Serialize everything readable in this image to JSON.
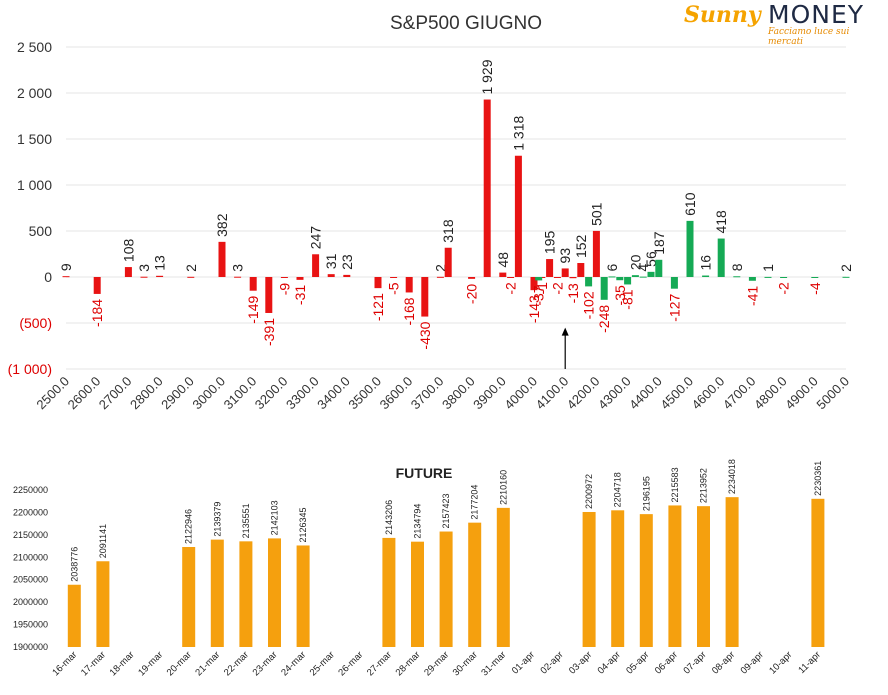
{
  "logo": {
    "brand_first": "Sunny",
    "brand_second": "MONEY",
    "tagline": "Facciamo luce sui mercati"
  },
  "colors": {
    "call": "#e81313",
    "put": "#15aa55",
    "future": "#f5a00e",
    "axis_text": "#333333",
    "negative_tick": "#dd0000",
    "grid": "#e6e6e6"
  },
  "chart_data": [
    {
      "type": "bar",
      "title": "S&P500 GIUGNO",
      "ylim": [
        -1000,
        2500
      ],
      "yticks": [
        "2 500",
        "2 000",
        "1 500",
        "1 000",
        "500",
        "0",
        "(500)",
        "(1 000)"
      ],
      "ytick_values": [
        2500,
        2000,
        1500,
        1000,
        500,
        0,
        -500,
        -1000
      ],
      "grid": true,
      "categories": [
        "2500.0",
        "2600.0",
        "2700.0",
        "2800.0",
        "2900.0",
        "3000.0",
        "3100.0",
        "3200.0",
        "3300.0",
        "3400.0",
        "3500.0",
        "3600.0",
        "3700.0",
        "3800.0",
        "3900.0",
        "4000.0",
        "4100.0",
        "4200.0",
        "4300.0",
        "4400.0",
        "4500.0",
        "4600.0",
        "4700.0",
        "4800.0",
        "4900.0",
        "5000.0"
      ],
      "series": [
        {
          "color": "call",
          "points": [
            {
              "x": 2500,
              "y": 9
            },
            {
              "x": 2600,
              "y": -184
            },
            {
              "x": 2700,
              "y": 108
            },
            {
              "x": 2750,
              "y": 3
            },
            {
              "x": 2800,
              "y": 13
            },
            {
              "x": 2900,
              "y": 2
            },
            {
              "x": 3000,
              "y": 382
            },
            {
              "x": 3050,
              "y": 3
            },
            {
              "x": 3100,
              "y": -149
            },
            {
              "x": 3150,
              "y": -391
            },
            {
              "x": 3200,
              "y": -9
            },
            {
              "x": 3250,
              "y": -31
            },
            {
              "x": 3300,
              "y": 247
            },
            {
              "x": 3350,
              "y": 31
            },
            {
              "x": 3400,
              "y": 23
            },
            {
              "x": 3500,
              "y": -121
            },
            {
              "x": 3550,
              "y": -5
            },
            {
              "x": 3600,
              "y": -168
            },
            {
              "x": 3650,
              "y": -430
            },
            {
              "x": 3700,
              "y": 2
            },
            {
              "x": 3725,
              "y": 318
            },
            {
              "x": 3800,
              "y": -20
            },
            {
              "x": 3850,
              "y": 1929
            },
            {
              "x": 3900,
              "y": 48
            },
            {
              "x": 3925,
              "y": -2
            },
            {
              "x": 3950,
              "y": 1318
            },
            {
              "x": 4000,
              "y": -143
            },
            {
              "x": 4025,
              "y": -1
            },
            {
              "x": 4050,
              "y": 195
            },
            {
              "x": 4075,
              "y": -2
            },
            {
              "x": 4100,
              "y": 93
            },
            {
              "x": 4125,
              "y": -13
            },
            {
              "x": 4150,
              "y": 152
            },
            {
              "x": 4200,
              "y": 501
            }
          ]
        },
        {
          "color": "put",
          "points": [
            {
              "x": 4015,
              "y": -37
            },
            {
              "x": 4175,
              "y": -102
            },
            {
              "x": 4225,
              "y": -248
            },
            {
              "x": 4250,
              "y": 6
            },
            {
              "x": 4275,
              "y": -35
            },
            {
              "x": 4300,
              "y": -81
            },
            {
              "x": 4325,
              "y": 20
            },
            {
              "x": 4350,
              "y": 4
            },
            {
              "x": 4375,
              "y": 56
            },
            {
              "x": 4400,
              "y": 187
            },
            {
              "x": 4450,
              "y": -127
            },
            {
              "x": 4500,
              "y": 610
            },
            {
              "x": 4550,
              "y": 16
            },
            {
              "x": 4600,
              "y": 418
            },
            {
              "x": 4650,
              "y": 8
            },
            {
              "x": 4700,
              "y": -41
            },
            {
              "x": 4750,
              "y": 1
            },
            {
              "x": 4800,
              "y": -2
            },
            {
              "x": 4900,
              "y": -4
            },
            {
              "x": 5000,
              "y": 2
            }
          ]
        }
      ],
      "annotations": [
        {
          "type": "arrow",
          "x": 4100,
          "from_y": -1000,
          "to_y": -550
        }
      ]
    },
    {
      "type": "bar",
      "title": "FUTURE",
      "ylim": [
        1900000,
        2250000
      ],
      "yticks": [
        "2250000",
        "2200000",
        "2150000",
        "2100000",
        "2050000",
        "2000000",
        "1950000",
        "1900000"
      ],
      "ytick_values": [
        2250000,
        2200000,
        2150000,
        2100000,
        2050000,
        2000000,
        1950000,
        1900000
      ],
      "grid": false,
      "categories": [
        "16-mar",
        "17-mar",
        "18-mar",
        "19-mar",
        "20-mar",
        "21-mar",
        "22-mar",
        "23-mar",
        "24-mar",
        "25-mar",
        "26-mar",
        "27-mar",
        "28-mar",
        "29-mar",
        "30-mar",
        "31-mar",
        "01-apr",
        "02-apr",
        "03-apr",
        "04-apr",
        "05-apr",
        "06-apr",
        "07-apr",
        "08-apr",
        "09-apr",
        "10-apr",
        "11-apr"
      ],
      "values": [
        2038776,
        2091141,
        null,
        null,
        2122946,
        2139379,
        2135551,
        2142103,
        2126345,
        null,
        null,
        2143206,
        2134794,
        2157423,
        2177204,
        2210160,
        null,
        null,
        2200972,
        2204718,
        2196195,
        2215583,
        2213952,
        2234018,
        null,
        null,
        2230361
      ],
      "labels": [
        "2038776",
        "2091141",
        "",
        "",
        "2122946",
        "2139379",
        "2135551",
        "2142103",
        "2126345",
        "",
        "",
        "2143206",
        "2134794",
        "2157423",
        "2177204",
        "2210160",
        "",
        "",
        "2200972",
        "2204718",
        "2196195",
        "2215583",
        "2213952",
        "2234018",
        "",
        "",
        "2230361"
      ]
    }
  ]
}
